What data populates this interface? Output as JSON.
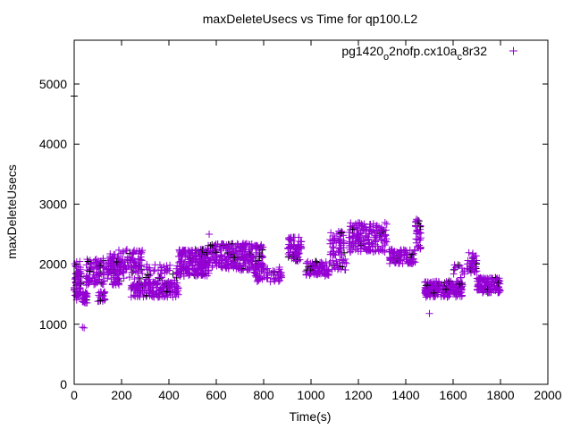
{
  "chart_data": {
    "type": "scatter",
    "title": "maxDeleteUsecs vs Time for qp100.L2",
    "xlabel": "Time(s)",
    "ylabel": "maxDeleteUsecs",
    "xlim": [
      0,
      2000
    ],
    "ylim": [
      0,
      5730
    ],
    "xticks": [
      0,
      200,
      400,
      600,
      800,
      1000,
      1200,
      1400,
      1600,
      1800,
      2000
    ],
    "yticks": [
      0,
      1000,
      2000,
      3000,
      4000,
      5000
    ],
    "grid": false,
    "legend": {
      "position": "top-right",
      "label_main": "pg1420",
      "sub1": "o",
      "mid": "2nofp.cx10a",
      "sub2": "c",
      "tail": "8r32"
    },
    "series_color": "#9400d3",
    "marker": "plus",
    "clusters": [
      {
        "x": [
          0,
          30
        ],
        "y": [
          1400,
          2050
        ],
        "n": 60
      },
      {
        "x": [
          30,
          55
        ],
        "y": [
          1350,
          1550
        ],
        "n": 30
      },
      {
        "x": [
          50,
          200
        ],
        "y": [
          1650,
          2100
        ],
        "n": 160
      },
      {
        "x": [
          100,
          140
        ],
        "y": [
          1380,
          1560
        ],
        "n": 20
      },
      {
        "x": [
          150,
          200
        ],
        "y": [
          1900,
          2250
        ],
        "n": 25
      },
      {
        "x": [
          200,
          290
        ],
        "y": [
          1750,
          2250
        ],
        "n": 80
      },
      {
        "x": [
          240,
          440
        ],
        "y": [
          1450,
          1700
        ],
        "n": 160
      },
      {
        "x": [
          300,
          440
        ],
        "y": [
          1650,
          2000
        ],
        "n": 60
      },
      {
        "x": [
          440,
          570
        ],
        "y": [
          1800,
          2250
        ],
        "n": 200
      },
      {
        "x": [
          560,
          800
        ],
        "y": [
          1900,
          2350
        ],
        "n": 280
      },
      {
        "x": [
          760,
          880
        ],
        "y": [
          1700,
          1950
        ],
        "n": 60
      },
      {
        "x": [
          900,
          960
        ],
        "y": [
          2050,
          2450
        ],
        "n": 70
      },
      {
        "x": [
          975,
          1080
        ],
        "y": [
          1800,
          2050
        ],
        "n": 80
      },
      {
        "x": [
          1080,
          1140
        ],
        "y": [
          2150,
          2550
        ],
        "n": 50
      },
      {
        "x": [
          1080,
          1150
        ],
        "y": [
          1900,
          2100
        ],
        "n": 25
      },
      {
        "x": [
          1160,
          1320
        ],
        "y": [
          2200,
          2700
        ],
        "n": 170
      },
      {
        "x": [
          1330,
          1440
        ],
        "y": [
          2000,
          2250
        ],
        "n": 90
      },
      {
        "x": [
          1440,
          1465
        ],
        "y": [
          2250,
          2750
        ],
        "n": 30
      },
      {
        "x": [
          1480,
          1640
        ],
        "y": [
          1450,
          1720
        ],
        "n": 200
      },
      {
        "x": [
          1600,
          1660
        ],
        "y": [
          1750,
          2000
        ],
        "n": 15
      },
      {
        "x": [
          1660,
          1700
        ],
        "y": [
          1850,
          2200
        ],
        "n": 40
      },
      {
        "x": [
          1700,
          1800
        ],
        "y": [
          1520,
          1780
        ],
        "n": 110
      }
    ],
    "outliers": [
      [
        35,
        950
      ],
      [
        42,
        940
      ],
      [
        1500,
        1180
      ],
      [
        570,
        2500
      ],
      [
        0,
        4800
      ],
      [
        1445,
        2750
      ]
    ]
  }
}
